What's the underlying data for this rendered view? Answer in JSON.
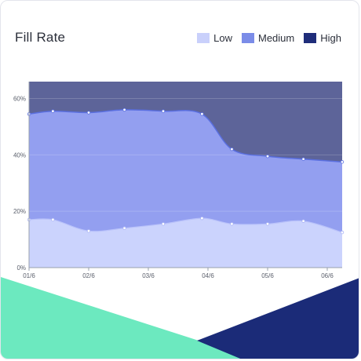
{
  "chart_data": {
    "type": "area",
    "stacked": true,
    "title": "Fill Rate",
    "xlabel": "",
    "ylabel": "",
    "legend_position": "top-right",
    "grid": true,
    "ylim": [
      0,
      66
    ],
    "y_ticks": [
      "0%",
      "20%",
      "40%",
      "60%"
    ],
    "y_tick_values": [
      0,
      20,
      40,
      60
    ],
    "x_ticks": [
      "01/6",
      "02/6",
      "03/6",
      "04/6",
      "05/6",
      "06/6"
    ],
    "x_tick_values": [
      0,
      1,
      2,
      3,
      4,
      5
    ],
    "series": [
      {
        "name": "Low",
        "color": "#c9d0fb",
        "x": [
          0,
          0.4,
          1,
          1.6,
          2.25,
          2.9,
          3.4,
          4,
          4.6,
          5.25
        ],
        "values": [
          17,
          17,
          13,
          14,
          15.5,
          17.5,
          15.5,
          15.5,
          16.5,
          12.5
        ]
      },
      {
        "name": "Medium",
        "color": "#7b8ce8",
        "x": [
          0,
          0.4,
          1,
          1.6,
          2.25,
          2.9,
          3.4,
          4,
          4.6,
          5.25
        ],
        "values": [
          54.5,
          55.5,
          55,
          56,
          55.5,
          54.5,
          42,
          39.5,
          38.5,
          37.5
        ]
      },
      {
        "name": "High",
        "color": "#1f2d7a",
        "x": [
          0,
          5.25
        ],
        "values": [
          66,
          66
        ]
      }
    ]
  },
  "legend": {
    "low": "Low",
    "medium": "Medium",
    "high": "High"
  },
  "colors": {
    "deco_green": "#6ce9bf",
    "deco_navy": "#1b2b78"
  }
}
